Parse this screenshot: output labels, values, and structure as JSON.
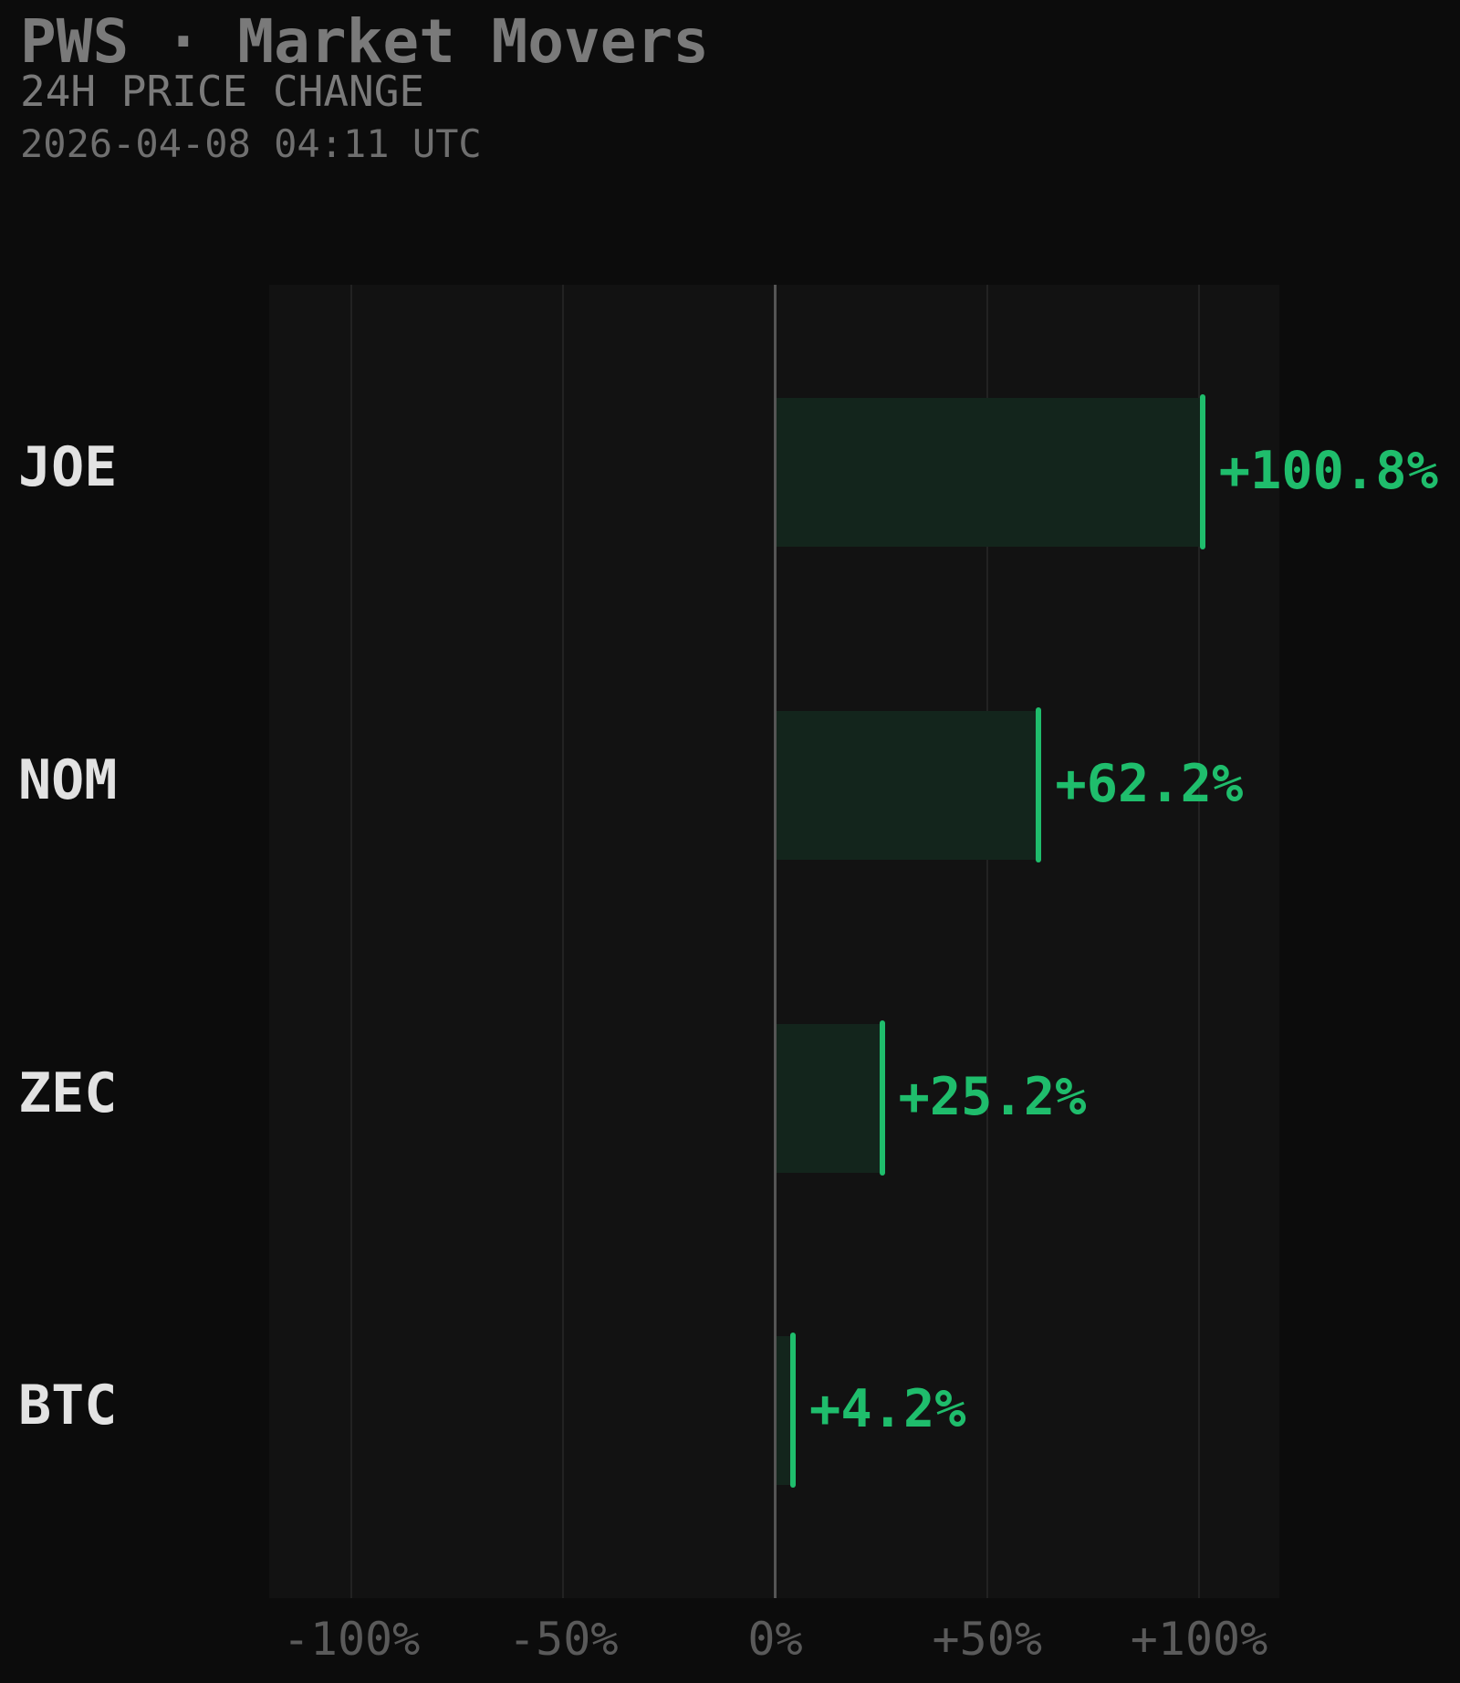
{
  "header": {
    "title": "PWS · Market Movers",
    "subtitle": "24H PRICE CHANGE",
    "timestamp": "2026-04-08 04:11 UTC"
  },
  "colors": {
    "background": "#0c0c0c",
    "plot_background": "#121212",
    "positive": "#1fbd6c",
    "bar_fill": "#13251c",
    "label": "#e2e2e2",
    "muted": "#7a7a7a",
    "tick": "#5a5a5a"
  },
  "rows": [
    {
      "symbol": "JOE",
      "value": 100.8,
      "label": "+100.8%"
    },
    {
      "symbol": "NOM",
      "value": 62.2,
      "label": "+62.2%"
    },
    {
      "symbol": "ZEC",
      "value": 25.2,
      "label": "+25.2%"
    },
    {
      "symbol": "BTC",
      "value": 4.2,
      "label": "+4.2%"
    }
  ],
  "axis": {
    "ticks": [
      {
        "value": -100,
        "label": "-100%"
      },
      {
        "value": -50,
        "label": "-50%"
      },
      {
        "value": 0,
        "label": "0%"
      },
      {
        "value": 50,
        "label": "+50%"
      },
      {
        "value": 100,
        "label": "+100%"
      }
    ]
  },
  "chart_data": {
    "type": "bar",
    "orientation": "horizontal",
    "title": "PWS · Market Movers",
    "subtitle": "24H PRICE CHANGE",
    "annotation": "2026-04-08 04:11 UTC",
    "categories": [
      "JOE",
      "NOM",
      "ZEC",
      "BTC"
    ],
    "values": [
      100.8,
      62.2,
      25.2,
      4.2
    ],
    "data_labels": [
      "+100.8%",
      "+62.2%",
      "+25.2%",
      "+4.2%"
    ],
    "xlabel": "",
    "ylabel": "",
    "xlim": [
      -119,
      119
    ],
    "xticks": [
      -100,
      -50,
      0,
      50,
      100
    ],
    "xtick_labels": [
      "-100%",
      "-50%",
      "0%",
      "+50%",
      "+100%"
    ],
    "grid": "vertical",
    "legend": "none"
  }
}
